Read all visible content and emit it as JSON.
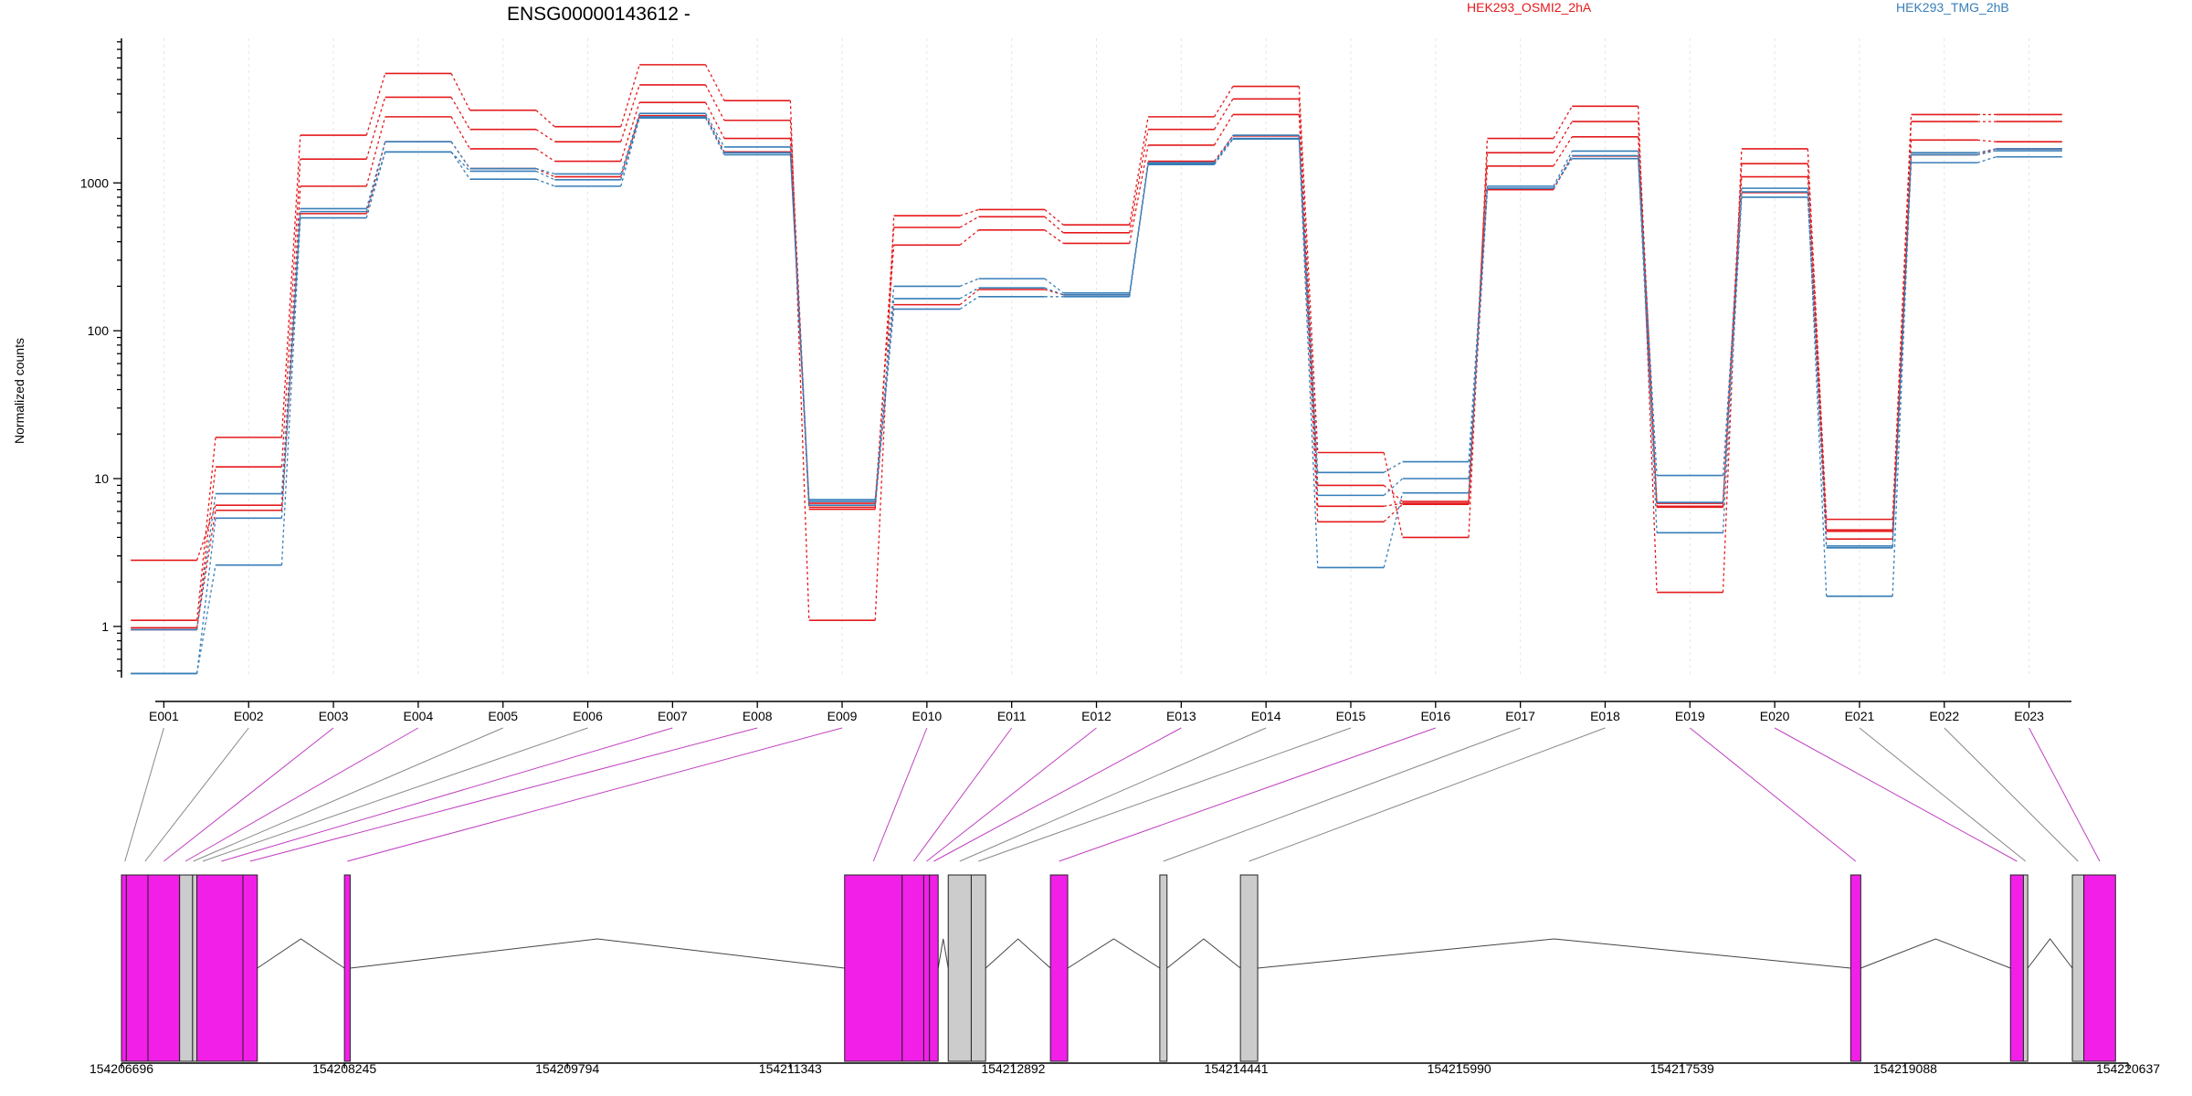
{
  "chart_data": {
    "type": "line",
    "title": "ENSG00000143612 -",
    "ylabel": "Normalized counts",
    "xlabel": "",
    "yscale": "log",
    "yticks": [
      1,
      10,
      100,
      1000
    ],
    "ytick_labels": [
      "1",
      "10",
      "100",
      "1000"
    ],
    "ylim": [
      0.45,
      9500
    ],
    "grid": true,
    "legend_placement": "top-right",
    "categories": [
      "E001",
      "E002",
      "E003",
      "E004",
      "E005",
      "E006",
      "E007",
      "E008",
      "E009",
      "E010",
      "E011",
      "E012",
      "E013",
      "E014",
      "E015",
      "E016",
      "E017",
      "E018",
      "E019",
      "E020",
      "E021",
      "E022",
      "E023"
    ],
    "series": [
      {
        "name": "HEK293_OSMI2_2hA",
        "color": "#e41a1c",
        "values": [
          1.1,
          19,
          2100,
          5500,
          3100,
          2400,
          6300,
          3600,
          1.1,
          600,
          660,
          520,
          2800,
          4500,
          15,
          4,
          2000,
          3300,
          1.7,
          1700,
          5.3,
          2900,
          2900
        ]
      },
      {
        "name": "HEK293_OSMI2_2hA",
        "color": "#e41a1c",
        "values": [
          0.95,
          12,
          1450,
          3800,
          2300,
          1900,
          4600,
          2650,
          6.2,
          500,
          590,
          460,
          2300,
          3700,
          9,
          7,
          1600,
          2600,
          6.5,
          1350,
          4.5,
          2600,
          2600
        ]
      },
      {
        "name": "HEK293_OSMI2_2hA",
        "color": "#e41a1c",
        "values": [
          2.8,
          6.6,
          950,
          2800,
          1700,
          1400,
          3500,
          2000,
          6.8,
          380,
          480,
          390,
          1800,
          2900,
          6.5,
          6.8,
          1300,
          2050,
          6.8,
          1100,
          4.4,
          1950,
          1900
        ]
      },
      {
        "name": "HEK293_OSMI2_2hA",
        "color": "#e41a1c",
        "values": [
          0.98,
          6.1,
          620,
          1900,
          1250,
          1100,
          2850,
          1620,
          6.4,
          150,
          190,
          175,
          1400,
          2080,
          5.1,
          6.7,
          900,
          1520,
          6.4,
          860,
          3.9,
          1550,
          1700
        ]
      },
      {
        "name": "HEK293_TMG_2hB",
        "color": "#377eb8",
        "values": [
          0.95,
          7.9,
          670,
          1900,
          1250,
          1150,
          2950,
          1750,
          7.2,
          200,
          225,
          180,
          1350,
          2100,
          11,
          13,
          950,
          1640,
          10.5,
          870,
          3.5,
          1600,
          1700
        ]
      },
      {
        "name": "HEK293_TMG_2hB",
        "color": "#377eb8",
        "values": [
          0.48,
          5.4,
          640,
          1620,
          1200,
          1050,
          2800,
          1600,
          6.6,
          165,
          195,
          175,
          1370,
          2000,
          7.7,
          10,
          920,
          1530,
          6.9,
          920,
          1.6,
          1550,
          1650
        ]
      },
      {
        "name": "HEK293_TMG_2hB",
        "color": "#377eb8",
        "values": [
          0.48,
          2.6,
          580,
          1620,
          1060,
          950,
          2750,
          1550,
          7.0,
          140,
          170,
          170,
          1330,
          1980,
          2.5,
          8,
          920,
          1460,
          4.3,
          800,
          3.4,
          1370,
          1500
        ]
      }
    ],
    "genome": {
      "ticks": [
        "154206696",
        "154208245",
        "154209794",
        "154211343",
        "154212892",
        "154214441",
        "154215990",
        "154217539",
        "154219088",
        "154220637"
      ],
      "range": [
        154206696,
        154220637
      ],
      "exons": [
        {
          "start": 154206696,
          "end": 154206730,
          "color": "#f21fe8"
        },
        {
          "start": 154206730,
          "end": 154206880,
          "color": "#f21fe8"
        },
        {
          "start": 154206880,
          "end": 154207100,
          "color": "#f21fe8"
        },
        {
          "start": 154207100,
          "end": 154207190,
          "color": "#cccccc"
        },
        {
          "start": 154207190,
          "end": 154207220,
          "color": "#cccccc"
        },
        {
          "start": 154207220,
          "end": 154207540,
          "color": "#f21fe8"
        },
        {
          "start": 154207540,
          "end": 154207640,
          "color": "#f21fe8"
        },
        {
          "start": 154208245,
          "end": 154208285,
          "color": "#f21fe8"
        },
        {
          "start": 154211720,
          "end": 154212120,
          "color": "#f21fe8"
        },
        {
          "start": 154212120,
          "end": 154212270,
          "color": "#f21fe8"
        },
        {
          "start": 154212270,
          "end": 154212310,
          "color": "#f21fe8"
        },
        {
          "start": 154212310,
          "end": 154212370,
          "color": "#f21fe8"
        },
        {
          "start": 154212440,
          "end": 154212600,
          "color": "#cccccc"
        },
        {
          "start": 154212600,
          "end": 154212700,
          "color": "#cccccc"
        },
        {
          "start": 154213150,
          "end": 154213270,
          "color": "#f21fe8"
        },
        {
          "start": 154213910,
          "end": 154213960,
          "color": "#cccccc"
        },
        {
          "start": 154214470,
          "end": 154214590,
          "color": "#cccccc"
        },
        {
          "start": 154218710,
          "end": 154218780,
          "color": "#f21fe8"
        },
        {
          "start": 154219820,
          "end": 154219910,
          "color": "#f21fe8"
        },
        {
          "start": 154219910,
          "end": 154219940,
          "color": "#cccccc"
        },
        {
          "start": 154220250,
          "end": 154220330,
          "color": "#cccccc"
        },
        {
          "start": 154220330,
          "end": 154220550,
          "color": "#f21fe8"
        }
      ],
      "links": [
        {
          "exon": "E001",
          "pos": 154206720,
          "color": "#888888"
        },
        {
          "exon": "E002",
          "pos": 154206860,
          "color": "#888888"
        },
        {
          "exon": "E003",
          "pos": 154206990,
          "color": "#c040c0"
        },
        {
          "exon": "E004",
          "pos": 154207140,
          "color": "#c040c0"
        },
        {
          "exon": "E005",
          "pos": 154207195,
          "color": "#888888"
        },
        {
          "exon": "E006",
          "pos": 154207260,
          "color": "#888888"
        },
        {
          "exon": "E007",
          "pos": 154207390,
          "color": "#c040c0"
        },
        {
          "exon": "E008",
          "pos": 154207590,
          "color": "#c040c0"
        },
        {
          "exon": "E009",
          "pos": 154208265,
          "color": "#c040c0"
        },
        {
          "exon": "E010",
          "pos": 154211920,
          "color": "#c040c0"
        },
        {
          "exon": "E011",
          "pos": 154212200,
          "color": "#c040c0"
        },
        {
          "exon": "E012",
          "pos": 154212290,
          "color": "#c040c0"
        },
        {
          "exon": "E013",
          "pos": 154212340,
          "color": "#c040c0"
        },
        {
          "exon": "E014",
          "pos": 154212520,
          "color": "#888888"
        },
        {
          "exon": "E015",
          "pos": 154212650,
          "color": "#888888"
        },
        {
          "exon": "E016",
          "pos": 154213210,
          "color": "#c040c0"
        },
        {
          "exon": "E017",
          "pos": 154213935,
          "color": "#888888"
        },
        {
          "exon": "E018",
          "pos": 154214530,
          "color": "#888888"
        },
        {
          "exon": "E019",
          "pos": 154218745,
          "color": "#c040c0"
        },
        {
          "exon": "E020",
          "pos": 154219865,
          "color": "#c040c0"
        },
        {
          "exon": "E021",
          "pos": 154219925,
          "color": "#888888"
        },
        {
          "exon": "E022",
          "pos": 154220290,
          "color": "#888888"
        },
        {
          "exon": "E023",
          "pos": 154220440,
          "color": "#c040c0"
        }
      ]
    }
  }
}
